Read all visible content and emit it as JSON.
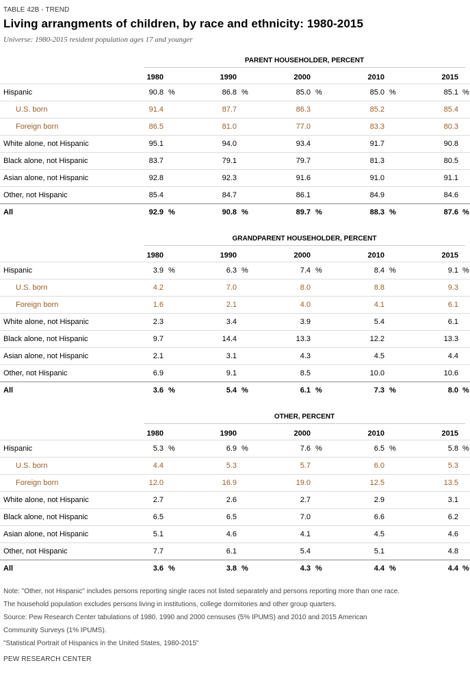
{
  "header": {
    "eyebrow": "TABLE 42B - TREND",
    "title": "Living arrangments of children, by race and ethnicity: 1980-2015",
    "subtitle": "Universe: 1980-2015 resident population ages 17 and younger"
  },
  "years": [
    "1980",
    "1990",
    "2000",
    "2010",
    "2015"
  ],
  "sections": [
    {
      "heading": "PARENT HOUSEHOLDER, PERCENT",
      "rows": [
        {
          "label": "Hispanic",
          "values": [
            "90.8",
            "86.8",
            "85.0",
            "85.0",
            "85.1"
          ],
          "pct": true
        },
        {
          "label": "U.S. born",
          "values": [
            "91.4",
            "87.7",
            "86.3",
            "85.2",
            "85.4"
          ],
          "sub": true
        },
        {
          "label": "Foreign born",
          "values": [
            "86.5",
            "81.0",
            "77.0",
            "83.3",
            "80.3"
          ],
          "sub": true
        },
        {
          "label": "White alone, not Hispanic",
          "values": [
            "95.1",
            "94.0",
            "93.4",
            "91.7",
            "90.8"
          ]
        },
        {
          "label": "Black alone, not Hispanic",
          "values": [
            "83.7",
            "79.1",
            "79.7",
            "81.3",
            "80.5"
          ]
        },
        {
          "label": "Asian alone, not Hispanic",
          "values": [
            "92.8",
            "92.3",
            "91.6",
            "91.0",
            "91.1"
          ]
        },
        {
          "label": "Other, not Hispanic",
          "values": [
            "85.4",
            "84.7",
            "86.1",
            "84.9",
            "84.6"
          ]
        },
        {
          "label": "All",
          "values": [
            "92.9",
            "90.8",
            "89.7",
            "88.3",
            "87.6"
          ],
          "pct": true,
          "total": true
        }
      ]
    },
    {
      "heading": "GRANDPARENT HOUSEHOLDER, PERCENT",
      "rows": [
        {
          "label": "Hispanic",
          "values": [
            "3.9",
            "6.3",
            "7.4",
            "8.4",
            "9.1"
          ],
          "pct": true
        },
        {
          "label": "U.S. born",
          "values": [
            "4.2",
            "7.0",
            "8.0",
            "8.8",
            "9.3"
          ],
          "sub": true
        },
        {
          "label": "Foreign born",
          "values": [
            "1.6",
            "2.1",
            "4.0",
            "4.1",
            "6.1"
          ],
          "sub": true
        },
        {
          "label": "White alone, not Hispanic",
          "values": [
            "2.3",
            "3.4",
            "3.9",
            "5.4",
            "6.1"
          ]
        },
        {
          "label": "Black alone, not Hispanic",
          "values": [
            "9.7",
            "14.4",
            "13.3",
            "12.2",
            "13.3"
          ]
        },
        {
          "label": "Asian alone, not Hispanic",
          "values": [
            "2.1",
            "3.1",
            "4.3",
            "4.5",
            "4.4"
          ]
        },
        {
          "label": "Other, not Hispanic",
          "values": [
            "6.9",
            "9.1",
            "8.5",
            "10.0",
            "10.6"
          ]
        },
        {
          "label": "All",
          "values": [
            "3.6",
            "5.4",
            "6.1",
            "7.3",
            "8.0"
          ],
          "pct": true,
          "total": true
        }
      ]
    },
    {
      "heading": "OTHER, PERCENT",
      "rows": [
        {
          "label": "Hispanic",
          "values": [
            "5.3",
            "6.9",
            "7.6",
            "6.5",
            "5.8"
          ],
          "pct": true
        },
        {
          "label": "U.S. born",
          "values": [
            "4.4",
            "5.3",
            "5.7",
            "6.0",
            "5.3"
          ],
          "sub": true
        },
        {
          "label": "Foreign born",
          "values": [
            "12.0",
            "16.9",
            "19.0",
            "12.5",
            "13.5"
          ],
          "sub": true
        },
        {
          "label": "White alone, not Hispanic",
          "values": [
            "2.7",
            "2.6",
            "2.7",
            "2.9",
            "3.1"
          ]
        },
        {
          "label": "Black alone, not Hispanic",
          "values": [
            "6.5",
            "6.5",
            "7.0",
            "6.6",
            "6.2"
          ]
        },
        {
          "label": "Asian alone, not Hispanic",
          "values": [
            "5.1",
            "4.6",
            "4.1",
            "4.5",
            "4.6"
          ]
        },
        {
          "label": "Other, not Hispanic",
          "values": [
            "7.7",
            "6.1",
            "5.4",
            "5.1",
            "4.8"
          ]
        },
        {
          "label": "All",
          "values": [
            "3.6",
            "3.8",
            "4.3",
            "4.4",
            "4.4"
          ],
          "pct": true,
          "total": true
        }
      ]
    }
  ],
  "pct_symbol": "%",
  "notes": [
    "Note: \"Other, not Hispanic\" includes persons reporting single races not listed separately and persons reporting more than one race.",
    "The household population excludes persons living in institutions, college dormitories and other group quarters.",
    "Source: Pew Research Center tabulations of 1980, 1990 and 2000 censuses (5% IPUMS) and 2010 and 2015 American",
    "Community Surveys (1% IPUMS).",
    "\"Statistical Portrait of Hispanics in the United States, 1980-2015\""
  ],
  "brand": "PEW RESEARCH CENTER"
}
